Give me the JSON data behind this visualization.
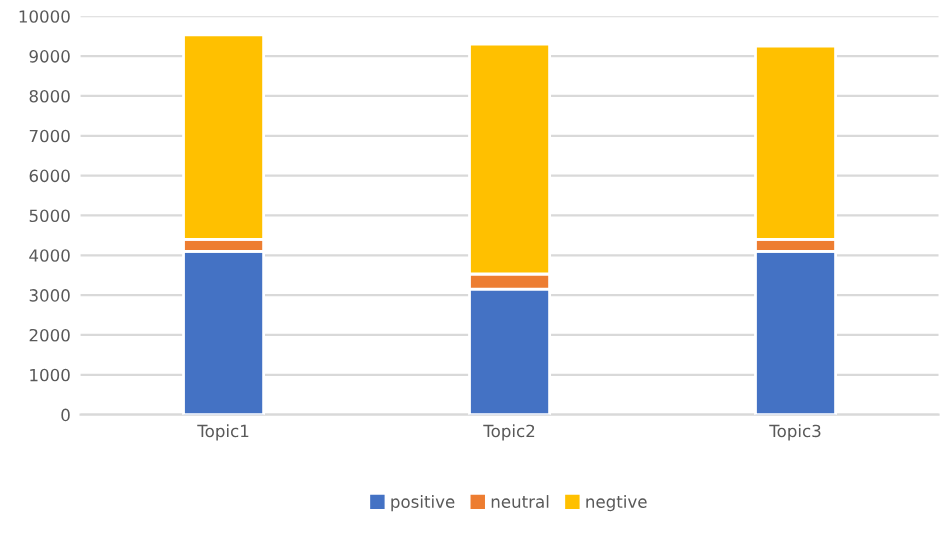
{
  "chart_data": {
    "type": "bar",
    "stacked": true,
    "categories": [
      "Topic1",
      "Topic2",
      "Topic3"
    ],
    "series": [
      {
        "name": "positive",
        "color": "#4472c4",
        "values": [
          4100,
          3150,
          4100
        ]
      },
      {
        "name": "neutral",
        "color": "#ed7d31",
        "values": [
          300,
          380,
          300
        ]
      },
      {
        "name": "negtive",
        "color": "#ffc000",
        "values": [
          5130,
          5770,
          4850
        ]
      }
    ],
    "ylim": [
      0,
      10000
    ],
    "yticks": [
      0,
      1000,
      2000,
      3000,
      4000,
      5000,
      6000,
      7000,
      8000,
      9000,
      10000
    ],
    "grid": "y",
    "legend": "bottom"
  }
}
